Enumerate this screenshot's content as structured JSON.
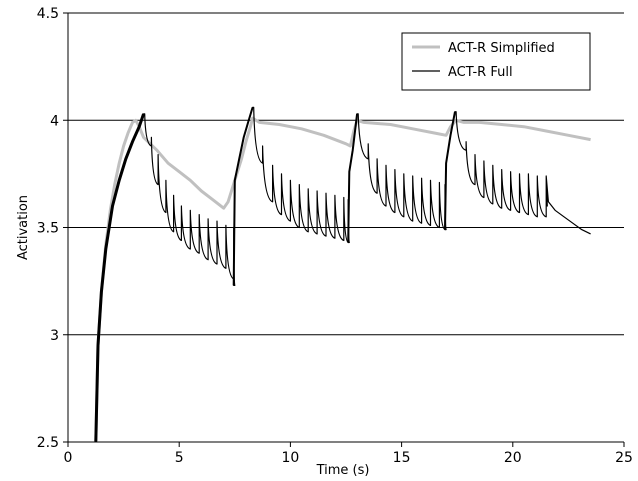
{
  "chart_data": {
    "type": "line",
    "title": "",
    "xlabel": "Time (s)",
    "ylabel": "Activation",
    "xlim": [
      0,
      25
    ],
    "ylim": [
      2.5,
      4.5
    ],
    "x_ticks": [
      0,
      5,
      10,
      15,
      20,
      25
    ],
    "x_tick_labels": [
      "0",
      "5",
      "10",
      "15",
      "20",
      "25"
    ],
    "y_ticks": [
      2.5,
      3,
      3.5,
      4,
      4.5
    ],
    "y_tick_labels": [
      "2.5",
      "3",
      "3.5",
      "4",
      "4.5"
    ],
    "horizontal_grid": true,
    "legend_position": "top-right",
    "series": [
      {
        "name": "ACT-R Simplified",
        "color": "#c0c0c0",
        "points": [
          [
            1.25,
            2.5
          ],
          [
            1.35,
            2.95
          ],
          [
            1.5,
            3.2
          ],
          [
            1.7,
            3.42
          ],
          [
            1.9,
            3.58
          ],
          [
            2.1,
            3.7
          ],
          [
            2.3,
            3.8
          ],
          [
            2.5,
            3.88
          ],
          [
            2.7,
            3.94
          ],
          [
            2.9,
            3.99
          ],
          [
            3.05,
            4.0
          ],
          [
            3.2,
            3.97
          ],
          [
            3.4,
            3.92
          ],
          [
            4.0,
            3.86
          ],
          [
            4.5,
            3.8
          ],
          [
            5.0,
            3.76
          ],
          [
            5.5,
            3.72
          ],
          [
            6.0,
            3.67
          ],
          [
            6.5,
            3.63
          ],
          [
            7.0,
            3.59
          ],
          [
            7.2,
            3.62
          ],
          [
            7.5,
            3.72
          ],
          [
            7.8,
            3.82
          ],
          [
            8.0,
            3.9
          ],
          [
            8.2,
            3.97
          ],
          [
            8.3,
            4.01
          ],
          [
            8.6,
            3.99
          ],
          [
            9.5,
            3.98
          ],
          [
            10.5,
            3.96
          ],
          [
            11.5,
            3.93
          ],
          [
            12.5,
            3.89
          ],
          [
            12.7,
            3.88
          ],
          [
            12.85,
            3.95
          ],
          [
            13.0,
            4.0
          ],
          [
            13.3,
            3.99
          ],
          [
            14.5,
            3.98
          ],
          [
            15.5,
            3.96
          ],
          [
            16.5,
            3.94
          ],
          [
            17.0,
            3.93
          ],
          [
            17.2,
            3.97
          ],
          [
            17.45,
            4.0
          ],
          [
            17.8,
            3.99
          ],
          [
            18.5,
            3.99
          ],
          [
            19.5,
            3.98
          ],
          [
            20.5,
            3.97
          ],
          [
            21.5,
            3.95
          ],
          [
            22.5,
            3.93
          ],
          [
            23.5,
            3.91
          ]
        ]
      },
      {
        "name": "ACT-R Full",
        "color": "#000000",
        "pulses": [
          {
            "t": 1.2,
            "from": 2.5,
            "to": 2.5
          }
        ],
        "segments": [
          {
            "rise": [
              [
                1.25,
                2.5
              ],
              [
                1.35,
                2.95
              ],
              [
                1.5,
                3.2
              ],
              [
                1.7,
                3.4
              ],
              [
                2.0,
                3.6
              ],
              [
                2.3,
                3.72
              ],
              [
                2.6,
                3.82
              ],
              [
                2.9,
                3.9
              ],
              [
                3.2,
                3.97
              ],
              [
                3.4,
                4.03
              ]
            ]
          },
          {
            "spikes": [
              {
                "t": 3.45,
                "top": 4.03,
                "bottom": 3.88
              },
              {
                "t": 3.75,
                "top": 3.92,
                "bottom": 3.7
              },
              {
                "t": 4.05,
                "top": 3.84,
                "bottom": 3.57
              },
              {
                "t": 4.4,
                "top": 3.72,
                "bottom": 3.48
              },
              {
                "t": 4.75,
                "top": 3.65,
                "bottom": 3.44
              },
              {
                "t": 5.1,
                "top": 3.6,
                "bottom": 3.4
              },
              {
                "t": 5.5,
                "top": 3.58,
                "bottom": 3.38
              },
              {
                "t": 5.9,
                "top": 3.56,
                "bottom": 3.35
              },
              {
                "t": 6.3,
                "top": 3.54,
                "bottom": 3.33
              },
              {
                "t": 6.7,
                "top": 3.53,
                "bottom": 3.31
              },
              {
                "t": 7.1,
                "top": 3.51,
                "bottom": 3.26
              },
              {
                "t": 7.45,
                "top": 3.5,
                "bottom": 3.23
              }
            ]
          },
          {
            "rise": [
              [
                7.45,
                3.23
              ],
              [
                7.5,
                3.72
              ],
              [
                7.7,
                3.82
              ],
              [
                7.9,
                3.92
              ],
              [
                8.1,
                3.99
              ],
              [
                8.3,
                4.06
              ]
            ]
          },
          {
            "spikes": [
              {
                "t": 8.35,
                "top": 4.06,
                "bottom": 3.8
              },
              {
                "t": 8.75,
                "top": 3.88,
                "bottom": 3.62
              },
              {
                "t": 9.2,
                "top": 3.79,
                "bottom": 3.56
              },
              {
                "t": 9.6,
                "top": 3.75,
                "bottom": 3.53
              },
              {
                "t": 10.0,
                "top": 3.72,
                "bottom": 3.5
              },
              {
                "t": 10.4,
                "top": 3.7,
                "bottom": 3.48
              },
              {
                "t": 10.8,
                "top": 3.68,
                "bottom": 3.47
              },
              {
                "t": 11.2,
                "top": 3.67,
                "bottom": 3.46
              },
              {
                "t": 11.6,
                "top": 3.66,
                "bottom": 3.45
              },
              {
                "t": 12.0,
                "top": 3.65,
                "bottom": 3.44
              },
              {
                "t": 12.4,
                "top": 3.64,
                "bottom": 3.43
              },
              {
                "t": 12.6,
                "top": 3.63,
                "bottom": 3.43
              }
            ]
          },
          {
            "rise": [
              [
                12.6,
                3.43
              ],
              [
                12.65,
                3.76
              ],
              [
                12.8,
                3.86
              ],
              [
                13.0,
                4.03
              ]
            ]
          },
          {
            "spikes": [
              {
                "t": 13.05,
                "top": 4.03,
                "bottom": 3.82
              },
              {
                "t": 13.5,
                "top": 3.89,
                "bottom": 3.66
              },
              {
                "t": 13.9,
                "top": 3.82,
                "bottom": 3.6
              },
              {
                "t": 14.3,
                "top": 3.79,
                "bottom": 3.57
              },
              {
                "t": 14.7,
                "top": 3.77,
                "bottom": 3.55
              },
              {
                "t": 15.1,
                "top": 3.75,
                "bottom": 3.53
              },
              {
                "t": 15.5,
                "top": 3.74,
                "bottom": 3.52
              },
              {
                "t": 15.9,
                "top": 3.73,
                "bottom": 3.51
              },
              {
                "t": 16.3,
                "top": 3.72,
                "bottom": 3.5
              },
              {
                "t": 16.7,
                "top": 3.71,
                "bottom": 3.49
              },
              {
                "t": 16.95,
                "top": 3.7,
                "bottom": 3.49
              }
            ]
          },
          {
            "rise": [
              [
                16.95,
                3.49
              ],
              [
                17.0,
                3.8
              ],
              [
                17.2,
                3.93
              ],
              [
                17.4,
                4.04
              ]
            ]
          },
          {
            "spikes": [
              {
                "t": 17.45,
                "top": 4.04,
                "bottom": 3.86
              },
              {
                "t": 17.9,
                "top": 3.9,
                "bottom": 3.7
              },
              {
                "t": 18.3,
                "top": 3.84,
                "bottom": 3.64
              },
              {
                "t": 18.7,
                "top": 3.81,
                "bottom": 3.61
              },
              {
                "t": 19.1,
                "top": 3.79,
                "bottom": 3.59
              },
              {
                "t": 19.5,
                "top": 3.77,
                "bottom": 3.58
              },
              {
                "t": 19.9,
                "top": 3.76,
                "bottom": 3.57
              },
              {
                "t": 20.3,
                "top": 3.75,
                "bottom": 3.56
              },
              {
                "t": 20.7,
                "top": 3.75,
                "bottom": 3.55
              },
              {
                "t": 21.1,
                "top": 3.74,
                "bottom": 3.55
              },
              {
                "t": 21.5,
                "top": 3.74,
                "bottom": 3.6
              }
            ]
          },
          {
            "decay": [
              [
                21.5,
                3.74
              ],
              [
                21.6,
                3.62
              ],
              [
                21.9,
                3.58
              ],
              [
                22.3,
                3.55
              ],
              [
                22.7,
                3.52
              ],
              [
                23.1,
                3.49
              ],
              [
                23.5,
                3.47
              ]
            ]
          }
        ]
      }
    ]
  }
}
